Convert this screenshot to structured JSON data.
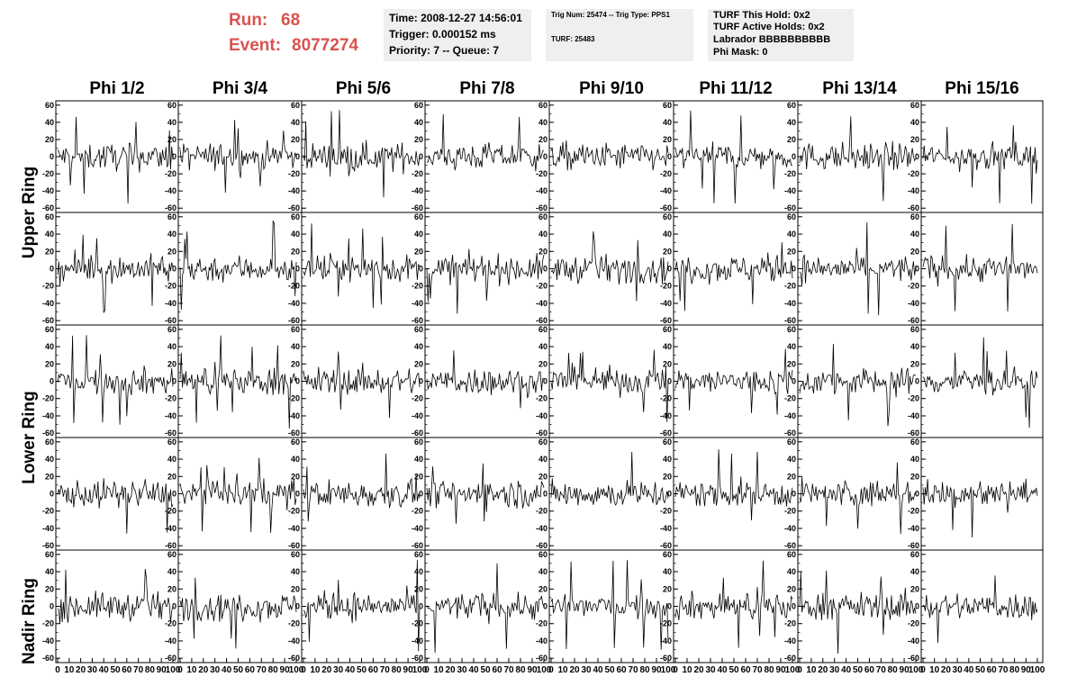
{
  "header": {
    "run_label": "Run:",
    "run_value": "68",
    "event_label": "Event:",
    "event_value": "8077274",
    "time_line": "Time: 2008-12-27 14:56:01",
    "trigger_line": "Trigger: 0.000152 ms",
    "priority_line": "Priority: 7 -- Queue: 7",
    "trig_line": "Trig Num: 25474 -- Trig Type: PPS1",
    "turf_line": "TURF: 25483",
    "turf_hold_line": "TURF This Hold: 0x2",
    "turf_active_line": "TURF Active Holds: 0x2",
    "labrador_line": "Labrador BBBBBBBBBB",
    "phi_mask_line": "Phi Mask: 0"
  },
  "chart_data": {
    "type": "line",
    "columns": [
      "Phi 1/2",
      "Phi 3/4",
      "Phi 5/6",
      "Phi 7/8",
      "Phi 9/10",
      "Phi 11/12",
      "Phi 13/14",
      "Phi 15/16"
    ],
    "row_labels": [
      "Upper Ring",
      "Lower Ring",
      "Nadir Ring"
    ],
    "ylim": [
      -65,
      65
    ],
    "yticks": [
      -60,
      -40,
      -20,
      0,
      20,
      40,
      60
    ],
    "xlim": [
      0,
      100
    ],
    "xticks": [
      0,
      10,
      20,
      30,
      40,
      50,
      60,
      70,
      80,
      90,
      100
    ],
    "samples_per_trace": 100,
    "line_color": "#000000",
    "note_traces": "Each of the 40 panels shows a noisy waveform; samples are approximated procedurally (amplitude ~ +/-20, occasional spikes to ~ +/-55)."
  },
  "colors": {
    "run_text": "#d9534f",
    "info_bg": "#efefef"
  }
}
